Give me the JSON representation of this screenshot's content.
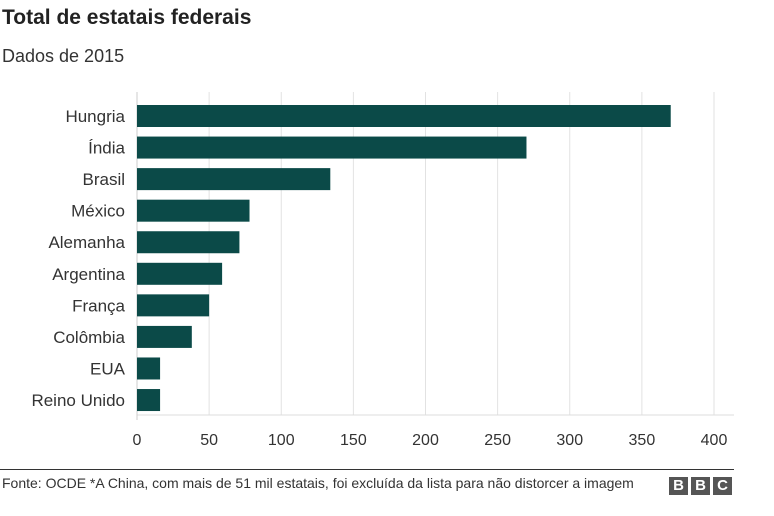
{
  "chart_data": {
    "type": "bar",
    "orientation": "horizontal",
    "title": "Total de estatais federais",
    "subtitle": "Dados de 2015",
    "categories": [
      "Hungria",
      "Índia",
      "Brasil",
      "México",
      "Alemanha",
      "Argentina",
      "França",
      "Colômbia",
      "EUA",
      "Reino Unido"
    ],
    "values": [
      370,
      270,
      134,
      78,
      71,
      59,
      50,
      38,
      16,
      16
    ],
    "xlim": [
      0,
      400
    ],
    "xticks": [
      0,
      50,
      100,
      150,
      200,
      250,
      300,
      350,
      400
    ],
    "xlabel": "",
    "ylabel": "",
    "grid": true,
    "bar_color": "#0b4a48"
  },
  "footer": {
    "source": "Fonte: OCDE *A China, com mais de 51 mil estatais, foi excluída da lista para não distorcer a imagem",
    "logo": [
      "B",
      "B",
      "C"
    ]
  }
}
